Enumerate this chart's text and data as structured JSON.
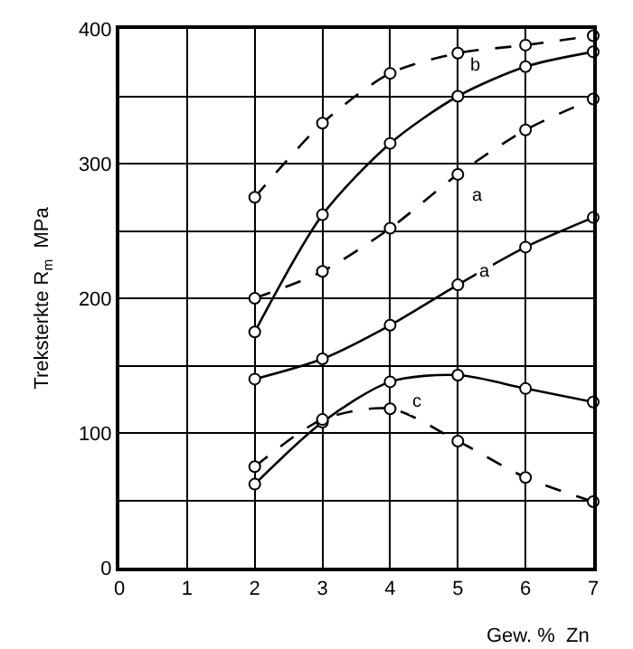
{
  "chart_data": {
    "type": "line",
    "xlabel": "Gew. %  Zn",
    "ylabel": "Treksterkte R$_{m}$  MPa",
    "x": [
      2,
      3,
      4,
      5,
      6,
      7
    ],
    "series": [
      {
        "color": "#000000",
        "line_style": "dashed",
        "values": [
          275,
          330,
          367,
          382,
          388,
          395
        ]
      },
      {
        "color": "#000000",
        "line_style": "solid",
        "values": [
          175,
          262,
          315,
          350,
          372,
          383
        ]
      },
      {
        "color": "#000000",
        "line_style": "dashed",
        "values": [
          200,
          220,
          252,
          292,
          325,
          348
        ]
      },
      {
        "color": "#000000",
        "line_style": "solid",
        "values": [
          140,
          155,
          180,
          210,
          238,
          260
        ]
      },
      {
        "color": "#000000",
        "line_style": "solid",
        "values": [
          62,
          108,
          138,
          143,
          133,
          123
        ]
      },
      {
        "color": "#000000",
        "line_style": "dashed",
        "values": [
          75,
          110,
          118,
          94,
          67,
          49
        ]
      }
    ],
    "annotations": [
      {
        "text": "b",
        "x": 5.25,
        "y": 373
      },
      {
        "text": "a",
        "x": 5.3,
        "y": 276
      },
      {
        "text": "a",
        "x": 5.4,
        "y": 220
      },
      {
        "text": "c",
        "x": 4.4,
        "y": 123
      }
    ],
    "xlim": [
      0,
      7
    ],
    "xticks": [
      0,
      1,
      2,
      3,
      4,
      5,
      6,
      7
    ],
    "ylim": [
      0,
      400
    ],
    "yticks": [
      0,
      {
        "value": 50,
        "label": null
      },
      100,
      {
        "value": 150,
        "label": null
      },
      200,
      {
        "value": 250,
        "label": null
      },
      300,
      {
        "value": 350,
        "label": null
      },
      400
    ],
    "grid": true,
    "marker": "circle"
  }
}
